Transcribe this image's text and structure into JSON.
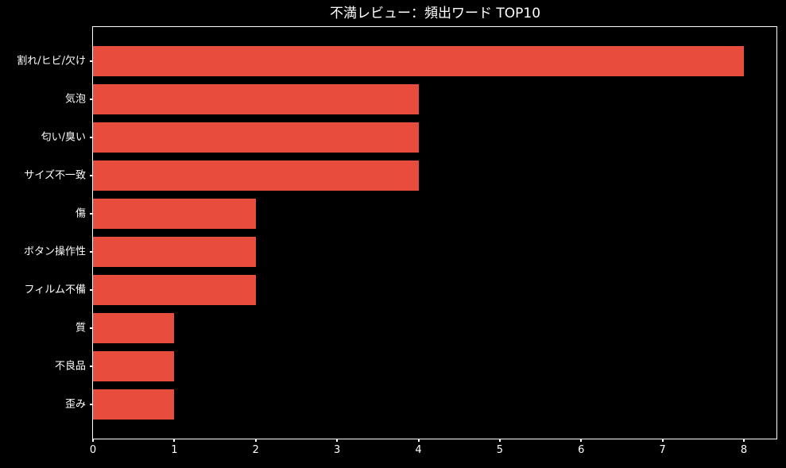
{
  "chart_data": {
    "type": "bar",
    "orientation": "horizontal",
    "title": "不満レビュー：頻出ワード TOP10",
    "categories": [
      "割れ/ヒビ/欠け",
      "気泡",
      "匂い/臭い",
      "サイズ不一致",
      "傷",
      "ボタン操作性",
      "フィルム不備",
      "質",
      "不良品",
      "歪み"
    ],
    "values": [
      8,
      4,
      4,
      4,
      2,
      2,
      2,
      1,
      1,
      1
    ],
    "xlabel": "",
    "ylabel": "",
    "x_ticks": [
      0,
      1,
      2,
      3,
      4,
      5,
      6,
      7,
      8
    ],
    "xlim": [
      0,
      8.4
    ],
    "ylim": [
      -0.89,
      9.89
    ],
    "bar_height": 0.8,
    "grid": false,
    "legend": null,
    "colors": {
      "background": "#000000",
      "bar": "#e74c3c",
      "text": "#ffffff",
      "spine": "#ffffff"
    }
  }
}
